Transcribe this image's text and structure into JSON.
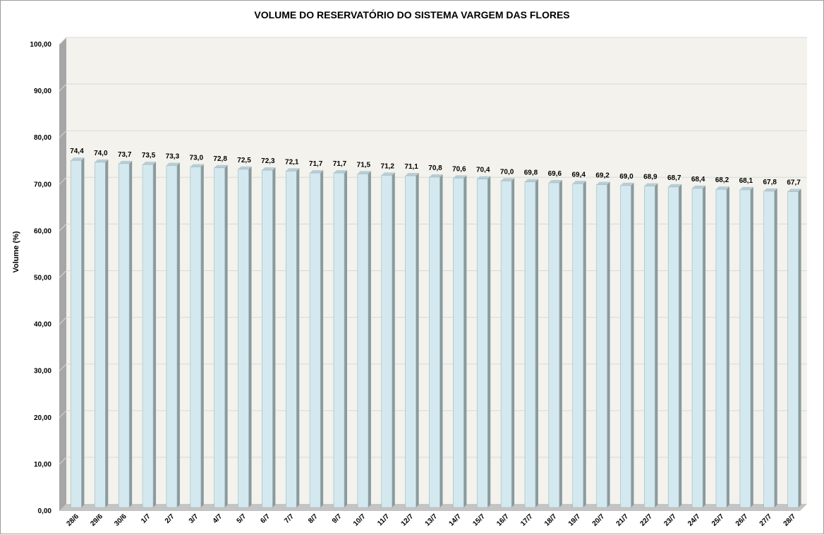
{
  "chart_data": {
    "type": "bar",
    "title": "VOLUME DO RESERVATÓRIO DO SISTEMA VARGEM DAS FLORES",
    "xlabel": "",
    "ylabel": "Volume (%)",
    "ylim": [
      0,
      100
    ],
    "y_ticks": [
      "0,00",
      "10,00",
      "20,00",
      "30,00",
      "40,00",
      "50,00",
      "60,00",
      "70,00",
      "80,00",
      "90,00",
      "100,00"
    ],
    "categories": [
      "28/6",
      "29/6",
      "30/6",
      "1/7",
      "2/7",
      "3/7",
      "4/7",
      "5/7",
      "6/7",
      "7/7",
      "8/7",
      "9/7",
      "10/7",
      "11/7",
      "12/7",
      "13/7",
      "14/7",
      "15/7",
      "16/7",
      "17/7",
      "18/7",
      "19/7",
      "20/7",
      "21/7",
      "22/7",
      "23/7",
      "24/7",
      "25/7",
      "26/7",
      "27/7",
      "28/7"
    ],
    "values": [
      74.4,
      74.0,
      73.7,
      73.5,
      73.3,
      73.0,
      72.8,
      72.5,
      72.3,
      72.1,
      71.7,
      71.7,
      71.5,
      71.2,
      71.1,
      70.8,
      70.6,
      70.4,
      70.0,
      69.8,
      69.6,
      69.4,
      69.2,
      69.0,
      68.9,
      68.7,
      68.4,
      68.2,
      68.1,
      67.8,
      67.7
    ],
    "data_labels": [
      "74,4",
      "74,0",
      "73,7",
      "73,5",
      "73,3",
      "73,0",
      "72,8",
      "72,5",
      "72,3",
      "72,1",
      "71,7",
      "71,7",
      "71,5",
      "71,2",
      "71,1",
      "70,8",
      "70,6",
      "70,4",
      "70,0",
      "69,8",
      "69,6",
      "69,4",
      "69,2",
      "69,0",
      "68,9",
      "68,7",
      "68,4",
      "68,2",
      "68,1",
      "67,8",
      "67,7"
    ],
    "grid": true,
    "legend": "none",
    "colors": {
      "bar_front": "#d3e9ef",
      "bar_side": "#8a9a9e",
      "bar_top": "#b9cdd3",
      "plot_back": "#f3f2ec",
      "plot_floor": "#c4c4c4",
      "plot_wall": "#a6a6a6",
      "gridline": "#d9d9d9"
    }
  }
}
